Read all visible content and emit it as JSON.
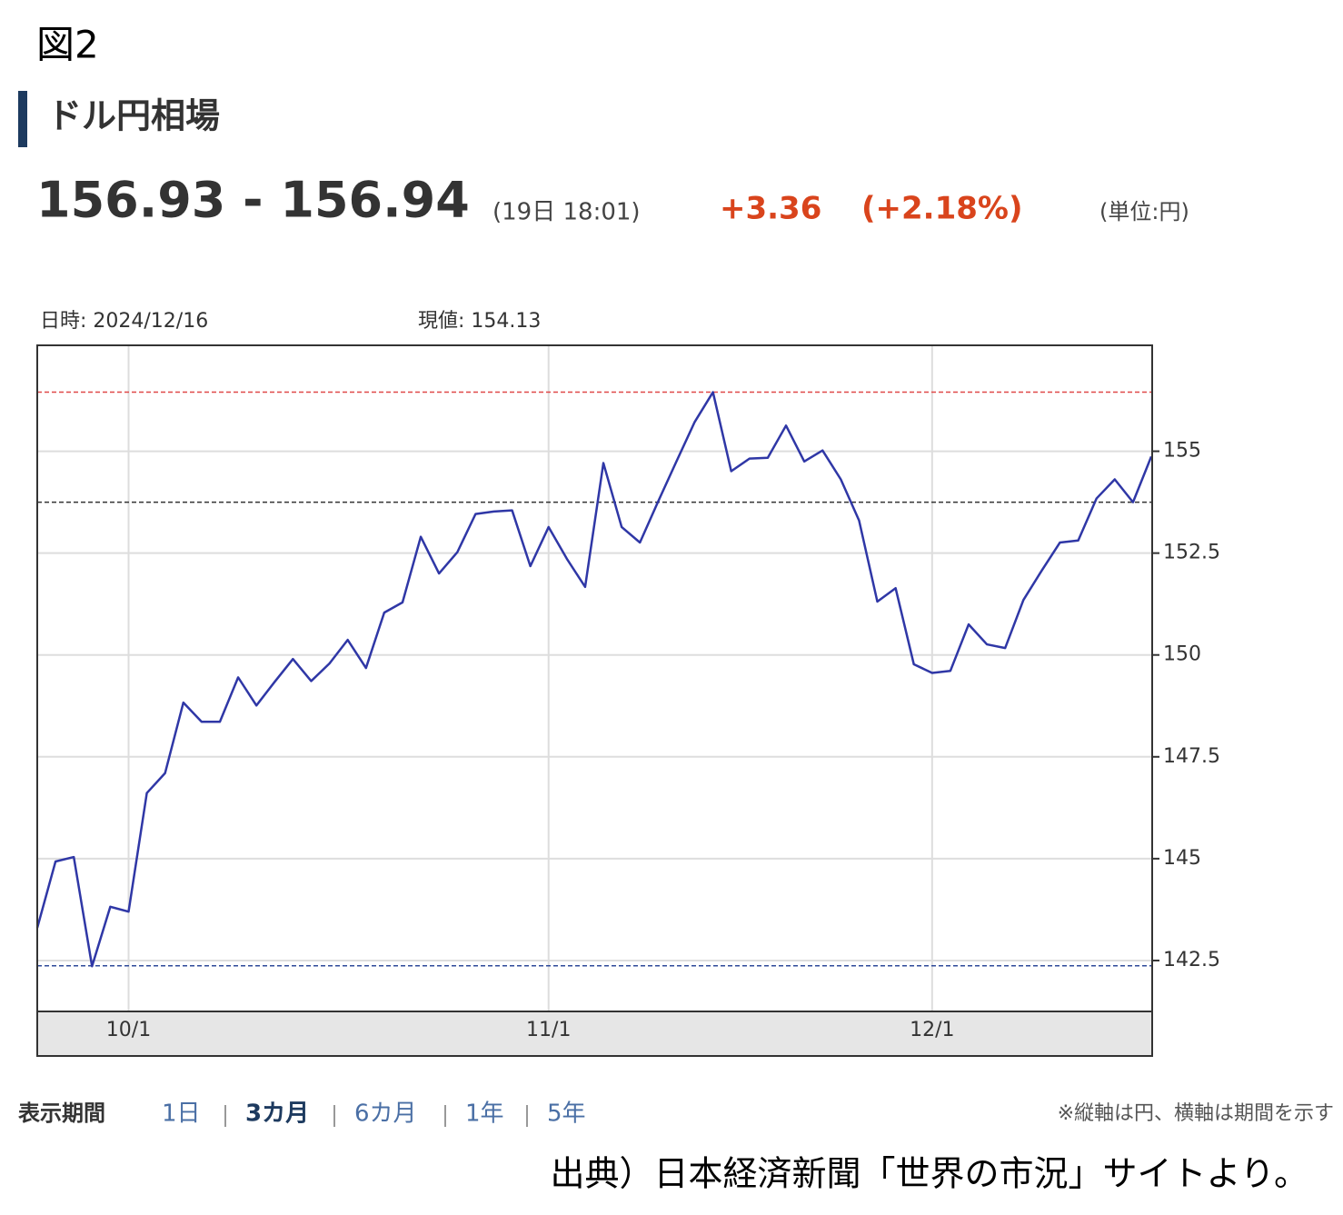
{
  "figure_label": "図2",
  "header": {
    "title": "ドル円相場",
    "price": "156.93 - 156.94",
    "time": "(19日 18:01)",
    "change": "+3.36",
    "change_pct": "(+2.18%)",
    "unit": "(単位:円)"
  },
  "chart_data": {
    "type": "line",
    "hover_date": "日時: 2024/12/16",
    "hover_value": "現値: 154.13",
    "categories": [
      null,
      null,
      null,
      null,
      null,
      "10/1",
      null,
      null,
      null,
      null,
      null,
      null,
      null,
      null,
      null,
      null,
      null,
      null,
      null,
      null,
      null,
      null,
      null,
      null,
      null,
      null,
      null,
      null,
      "11/1",
      null,
      null,
      null,
      null,
      null,
      null,
      null,
      null,
      null,
      null,
      null,
      null,
      null,
      null,
      null,
      null,
      null,
      null,
      null,
      null,
      "12/1",
      null,
      null,
      null,
      null,
      null,
      null,
      null,
      null,
      null,
      null,
      null,
      null
    ],
    "series": [
      {
        "color": "#2f37a6",
        "values": [
          143.3,
          144.93,
          145.04,
          142.36,
          143.82,
          143.7,
          146.61,
          147.1,
          148.83,
          148.36,
          148.36,
          149.45,
          148.76,
          149.34,
          149.9,
          149.36,
          149.79,
          150.37,
          149.68,
          151.04,
          151.29,
          152.9,
          152.0,
          152.52,
          153.46,
          153.52,
          153.55,
          152.18,
          153.14,
          152.36,
          151.67,
          154.71,
          153.14,
          152.76,
          153.77,
          154.75,
          155.72,
          156.45,
          154.51,
          154.82,
          154.84,
          155.63,
          154.75,
          155.02,
          154.31,
          153.3,
          151.31,
          151.64,
          149.77,
          149.56,
          149.61,
          150.75,
          150.26,
          150.17,
          151.35,
          152.07,
          152.76,
          152.81,
          153.84,
          154.31,
          153.75,
          154.87
        ]
      }
    ],
    "ref_lines": [
      {
        "value": 156.45,
        "color": "#e04848"
      },
      {
        "value": 153.75,
        "color": "#333333"
      },
      {
        "value": 142.37,
        "color": "#2f4a9a"
      }
    ],
    "ylim": [
      141.25,
      157.6
    ],
    "yticks": [
      142.5,
      145,
      147.5,
      150,
      152.5,
      155
    ],
    "grid": true
  },
  "period_selector": {
    "label": "表示期間",
    "options": [
      "1日",
      "3カ月",
      "6カ月",
      "1年",
      "5年"
    ],
    "active": 1
  },
  "note": "※縦軸は円、横軸は期間を示す",
  "source": "出典）日本経済新聞「世界の市況」サイトより。"
}
